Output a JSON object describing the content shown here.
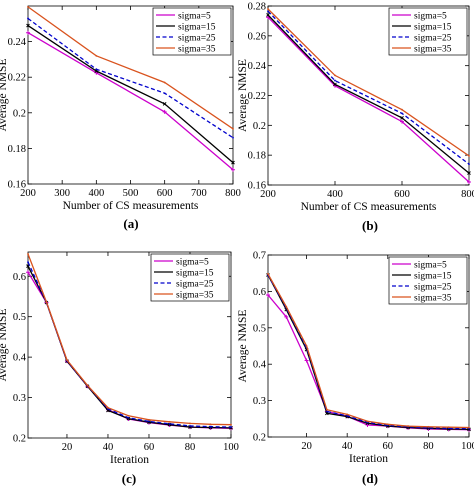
{
  "colors": {
    "sigma5": "#cc00cc",
    "sigma15": "#000000",
    "sigma25": "#0000cc",
    "sigma35": "#d9531e"
  },
  "chart_data": [
    {
      "type": "line",
      "panel_label": "(a)",
      "xlabel": "Number of CS measurements",
      "ylabel": "Average NMSE",
      "xlim": [
        200,
        800
      ],
      "ylim": [
        0.16,
        0.26
      ],
      "xticks": [
        "200",
        "300",
        "400",
        "500",
        "600",
        "700",
        "800"
      ],
      "yticks": [
        "0.16",
        "0.18",
        "0.2",
        "0.22",
        "0.24"
      ],
      "legend_position": "top-right",
      "grid": false,
      "x": [
        200,
        400,
        600,
        800
      ],
      "series": [
        {
          "name": "sigma=5",
          "values": [
            0.245,
            0.2225,
            0.2005,
            0.168
          ]
        },
        {
          "name": "sigma=15",
          "values": [
            0.249,
            0.2235,
            0.205,
            0.172
          ]
        },
        {
          "name": "sigma=25",
          "values": [
            0.253,
            0.2245,
            0.211,
            0.186
          ]
        },
        {
          "name": "sigma=35",
          "values": [
            0.2595,
            0.232,
            0.217,
            0.191
          ]
        }
      ]
    },
    {
      "type": "line",
      "panel_label": "(b)",
      "xlabel": "Number of CS measurements",
      "ylabel": "Average NMSE",
      "xlim": [
        200,
        800
      ],
      "ylim": [
        0.16,
        0.28
      ],
      "xticks": [
        "200",
        "400",
        "600",
        "800"
      ],
      "yticks": [
        "0.16",
        "0.18",
        "0.2",
        "0.22",
        "0.24",
        "0.26",
        "0.28"
      ],
      "legend_position": "top-right",
      "grid": false,
      "x": [
        200,
        400,
        600,
        800
      ],
      "series": [
        {
          "name": "sigma=5",
          "values": [
            0.2725,
            0.2265,
            0.2025,
            0.162
          ]
        },
        {
          "name": "sigma=15",
          "values": [
            0.274,
            0.2275,
            0.205,
            0.168
          ]
        },
        {
          "name": "sigma=25",
          "values": [
            0.2765,
            0.23,
            0.208,
            0.174
          ]
        },
        {
          "name": "sigma=35",
          "values": [
            0.278,
            0.2335,
            0.2105,
            0.1795
          ]
        }
      ]
    },
    {
      "type": "line",
      "panel_label": "(c)",
      "xlabel": "Iteration",
      "ylabel": "Average NMSE",
      "xlim": [
        1,
        100
      ],
      "ylim": [
        0.2,
        0.66
      ],
      "xticks": [
        "20",
        "40",
        "60",
        "80",
        "100"
      ],
      "yticks": [
        "0.2",
        "0.3",
        "0.4",
        "0.5",
        "0.6"
      ],
      "legend_position": "top-right",
      "grid": false,
      "x": [
        1,
        10,
        20,
        30,
        40,
        50,
        60,
        70,
        80,
        90,
        100
      ],
      "series": [
        {
          "name": "sigma=5",
          "values": [
            0.61,
            0.535,
            0.39,
            0.328,
            0.27,
            0.247,
            0.238,
            0.232,
            0.227,
            0.225,
            0.224
          ]
        },
        {
          "name": "sigma=15",
          "values": [
            0.625,
            0.535,
            0.39,
            0.328,
            0.268,
            0.248,
            0.239,
            0.233,
            0.227,
            0.226,
            0.225
          ]
        },
        {
          "name": "sigma=25",
          "values": [
            0.635,
            0.535,
            0.391,
            0.329,
            0.272,
            0.25,
            0.241,
            0.235,
            0.23,
            0.228,
            0.227
          ]
        },
        {
          "name": "sigma=35",
          "values": [
            0.655,
            0.536,
            0.393,
            0.33,
            0.275,
            0.255,
            0.245,
            0.24,
            0.236,
            0.234,
            0.233
          ]
        }
      ]
    },
    {
      "type": "line",
      "panel_label": "(d)",
      "xlabel": "Iteration",
      "ylabel": "Average NMSE",
      "xlim": [
        1,
        100
      ],
      "ylim": [
        0.2,
        0.7
      ],
      "xticks": [
        "20",
        "40",
        "60",
        "80",
        "100"
      ],
      "yticks": [
        "0.2",
        "0.3",
        "0.4",
        "0.5",
        "0.6",
        "0.7"
      ],
      "legend_position": "top-right",
      "grid": false,
      "x": [
        1,
        10,
        20,
        30,
        40,
        50,
        60,
        70,
        80,
        90,
        100
      ],
      "series": [
        {
          "name": "sigma=5",
          "values": [
            0.59,
            0.53,
            0.41,
            0.27,
            0.257,
            0.233,
            0.23,
            0.225,
            0.222,
            0.221,
            0.22
          ]
        },
        {
          "name": "sigma=15",
          "values": [
            0.645,
            0.55,
            0.44,
            0.265,
            0.256,
            0.238,
            0.23,
            0.226,
            0.224,
            0.222,
            0.221
          ]
        },
        {
          "name": "sigma=25",
          "values": [
            0.645,
            0.555,
            0.445,
            0.27,
            0.258,
            0.24,
            0.232,
            0.228,
            0.225,
            0.224,
            0.223
          ]
        },
        {
          "name": "sigma=35",
          "values": [
            0.648,
            0.558,
            0.45,
            0.275,
            0.262,
            0.243,
            0.235,
            0.23,
            0.228,
            0.227,
            0.226
          ]
        }
      ]
    }
  ]
}
